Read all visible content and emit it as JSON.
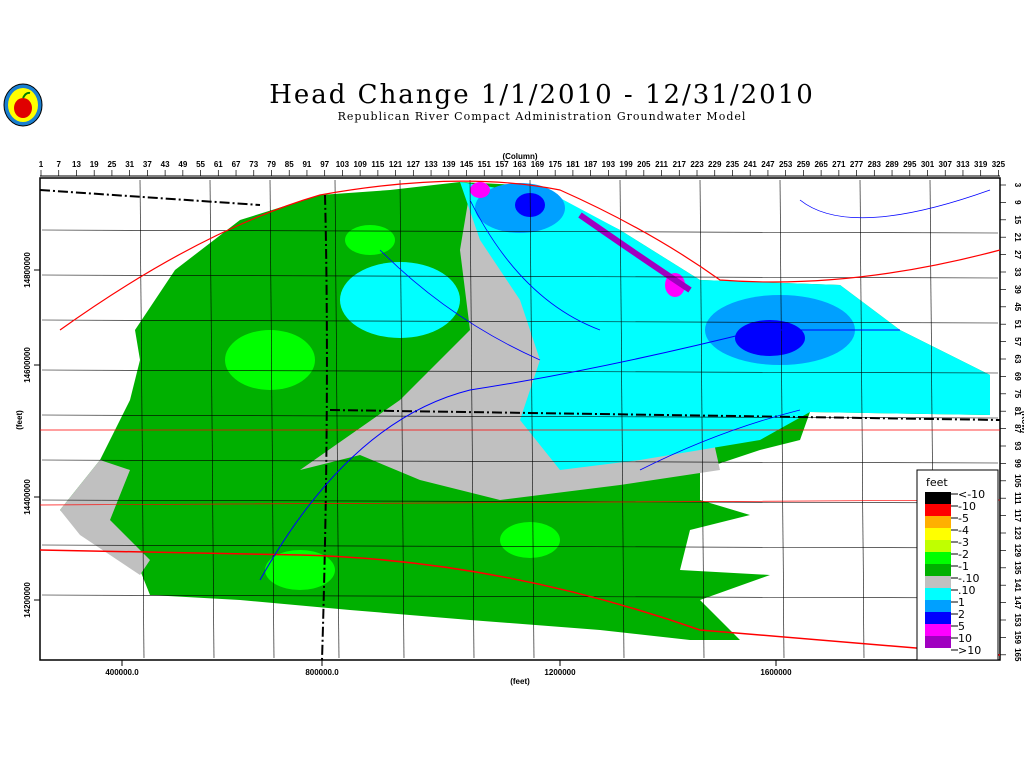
{
  "header": {
    "title": "Head Change 1/1/2010 - 12/31/2010",
    "subtitle": "Republican River Compact Administration Groundwater Model",
    "logo_icon": "apple-seal-logo"
  },
  "axes": {
    "top_label": "(Column)",
    "top_ticks": [
      "1",
      "7",
      "13",
      "19",
      "25",
      "31",
      "37",
      "43",
      "49",
      "55",
      "61",
      "67",
      "73",
      "79",
      "85",
      "91",
      "97",
      "103",
      "109",
      "115",
      "121",
      "127",
      "133",
      "139",
      "145",
      "151",
      "157",
      "163",
      "169",
      "175",
      "181",
      "187",
      "193",
      "199",
      "205",
      "211",
      "217",
      "223",
      "229",
      "235",
      "241",
      "247",
      "253",
      "259",
      "265",
      "271",
      "277",
      "283",
      "289",
      "295",
      "301",
      "307",
      "313",
      "319",
      "325"
    ],
    "right_label": "(Row)",
    "right_ticks": [
      "3",
      "9",
      "15",
      "21",
      "27",
      "33",
      "39",
      "45",
      "51",
      "57",
      "63",
      "69",
      "75",
      "81",
      "87",
      "93",
      "99",
      "105",
      "111",
      "117",
      "123",
      "129",
      "135",
      "141",
      "147",
      "153",
      "159",
      "165"
    ],
    "left_label": "(feet)",
    "left_ticks": [
      "14800000",
      "14600000",
      "14400000",
      "14200000"
    ],
    "bottom_label": "(feet)",
    "bottom_ticks": [
      "400000.0",
      "800000.0",
      "1200000",
      "1600000"
    ]
  },
  "legend": {
    "title": "feet",
    "classes": [
      {
        "label": "<-10",
        "color": "#000000"
      },
      {
        "label": "-10",
        "color": "#ff0000"
      },
      {
        "label": "-5",
        "color": "#ffb000"
      },
      {
        "label": "-4",
        "color": "#ffff00"
      },
      {
        "label": "-3",
        "color": "#c0ff00"
      },
      {
        "label": "-2",
        "color": "#00ff00"
      },
      {
        "label": "-1",
        "color": "#00b000"
      },
      {
        "label": "-.10",
        "color": "#c0c0c0"
      },
      {
        "label": ".10",
        "color": "#00ffff"
      },
      {
        "label": "1",
        "color": "#00a0ff"
      },
      {
        "label": "2",
        "color": "#0000ff"
      },
      {
        "label": "5",
        "color": "#ff00ff"
      },
      {
        "label": "10",
        "color": "#a000c0"
      },
      {
        "label": ">10",
        "color": ""
      }
    ]
  },
  "colors": {
    "counties": "#000000",
    "roads": "#ff0000",
    "rivers": "#0000ff",
    "state_line": "#000000"
  }
}
